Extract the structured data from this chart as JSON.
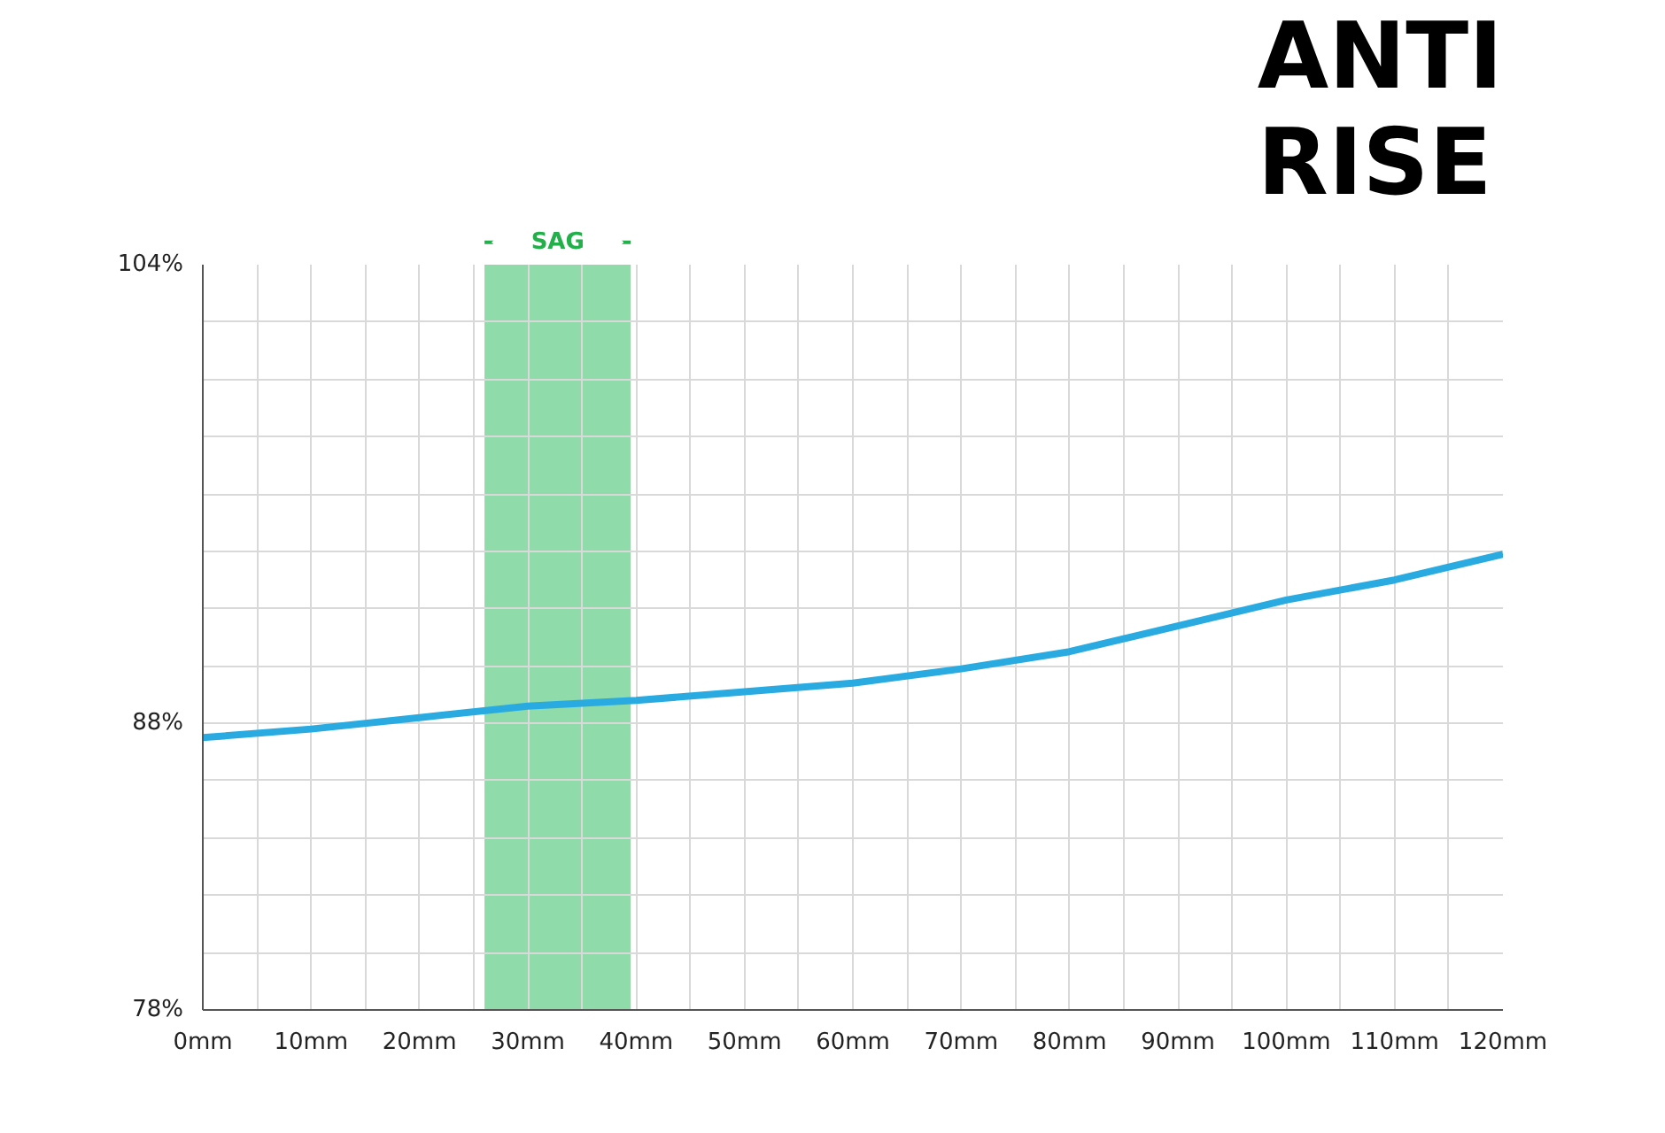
{
  "chart_data": {
    "type": "line",
    "title": "ANTI RISE",
    "x": [
      0,
      10,
      20,
      30,
      40,
      50,
      60,
      70,
      80,
      90,
      100,
      110,
      120
    ],
    "series": [
      {
        "color": "#29abe2",
        "values": [
          87.5,
          87.8,
          88.2,
          88.6,
          88.8,
          89.1,
          89.4,
          89.9,
          90.5,
          91.4,
          92.3,
          93.0,
          93.9
        ]
      }
    ],
    "xlim": [
      0,
      120
    ],
    "ylim": [
      78,
      104
    ],
    "xticks": [
      {
        "value": 0,
        "label": "0mm"
      },
      {
        "value": 5,
        "label": null
      },
      {
        "value": 10,
        "label": "10mm"
      },
      {
        "value": 15,
        "label": null
      },
      {
        "value": 20,
        "label": "20mm"
      },
      {
        "value": 25,
        "label": null
      },
      {
        "value": 30,
        "label": "30mm"
      },
      {
        "value": 35,
        "label": null
      },
      {
        "value": 40,
        "label": "40mm"
      },
      {
        "value": 45,
        "label": null
      },
      {
        "value": 50,
        "label": "50mm"
      },
      {
        "value": 55,
        "label": null
      },
      {
        "value": 60,
        "label": "60mm"
      },
      {
        "value": 65,
        "label": null
      },
      {
        "value": 70,
        "label": "70mm"
      },
      {
        "value": 75,
        "label": null
      },
      {
        "value": 80,
        "label": "80mm"
      },
      {
        "value": 85,
        "label": null
      },
      {
        "value": 90,
        "label": "90mm"
      },
      {
        "value": 95,
        "label": null
      },
      {
        "value": 100,
        "label": "100mm"
      },
      {
        "value": 105,
        "label": null
      },
      {
        "value": 110,
        "label": "110mm"
      },
      {
        "value": 115,
        "label": null
      },
      {
        "value": 120,
        "label": "120mm"
      }
    ],
    "yticks": [
      {
        "value": 78,
        "label": "78%"
      },
      {
        "value": 80,
        "label": null
      },
      {
        "value": 82,
        "label": null
      },
      {
        "value": 84,
        "label": null
      },
      {
        "value": 86,
        "label": null
      },
      {
        "value": 88,
        "label": "88%"
      },
      {
        "value": 90,
        "label": null
      },
      {
        "value": 92,
        "label": null
      },
      {
        "value": 94,
        "label": null
      },
      {
        "value": 96,
        "label": null
      },
      {
        "value": 98,
        "label": null
      },
      {
        "value": 100,
        "label": null
      },
      {
        "value": 102,
        "label": null
      },
      {
        "value": 104,
        "label": "104%"
      }
    ],
    "bands": [
      {
        "axis": "x",
        "from": 26,
        "to": 39.5,
        "label": "SAG",
        "color": "#8fdba9"
      }
    ],
    "grid": true,
    "marker": "none",
    "line_style": "solid"
  }
}
